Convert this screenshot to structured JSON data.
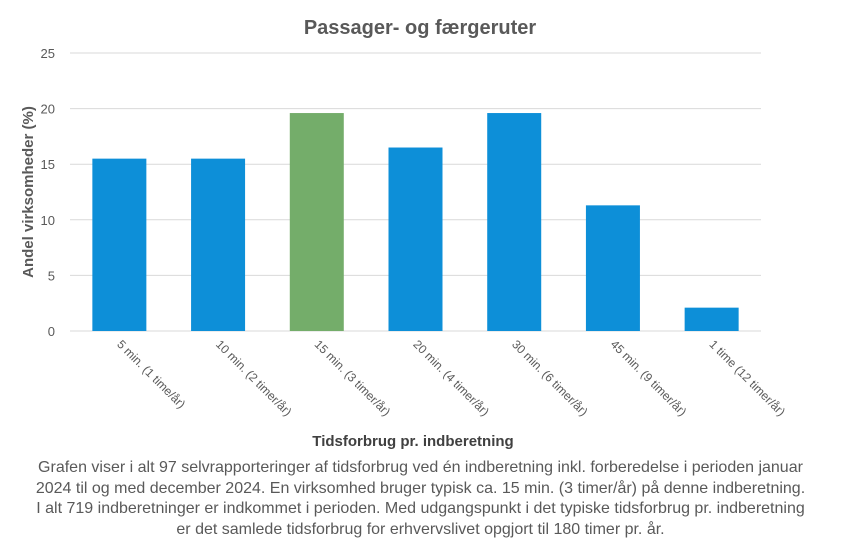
{
  "chart_data": {
    "type": "bar",
    "title": "Passager-  og færgeruter",
    "xlabel": "Tidsforbrug pr. indberetning",
    "ylabel": "Andel virksomheder  (%)",
    "categories": [
      "5 min. (1 time/år)",
      "10 min. (2 timer/år)",
      "15 min. (3 timer/år)",
      "20 min. (4 timer/år)",
      "30 min. (6 timer/år)",
      "45 min. (9 timer/år)",
      "1 time (12 timer/år)"
    ],
    "values": [
      15.5,
      15.5,
      19.6,
      16.5,
      19.6,
      11.3,
      2.1
    ],
    "highlight_index": 2,
    "ylim": [
      0,
      25
    ],
    "yticks": [
      0,
      5,
      10,
      15,
      20,
      25
    ],
    "grid": true,
    "colors": {
      "bar": "#0d8fd8",
      "highlight": "#74ad6a",
      "grid": "#d9d9d9",
      "text": "#595959"
    }
  },
  "caption": {
    "lines": [
      "Grafen viser i alt 97 selvrapporteringer af tidsforbrug  ved én indberetning inkl. forberedelse i perioden januar",
      "2024 til  og med december 2024. En virksomhed bruger typisk ca. 15 min. (3 timer/år)  på denne indberetning.",
      "I alt 719 indberetninger er indkommet i perioden. Med udgangspunkt i det typiske tidsforbrug  pr. indberetning",
      "er det samlede tidsforbrug  for erhvervslivet  opgjort til 180 timer pr. år."
    ]
  }
}
